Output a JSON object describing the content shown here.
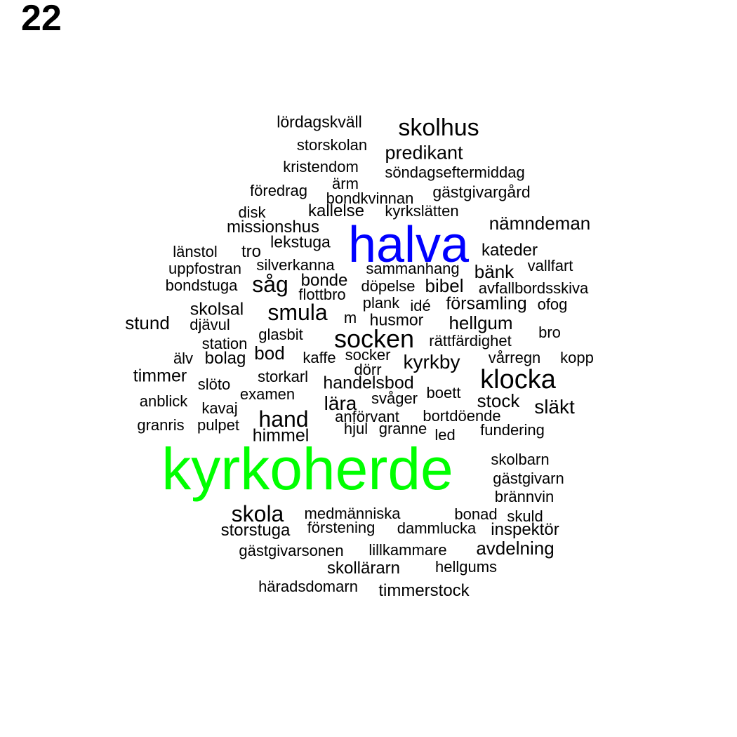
{
  "page_number": "22",
  "colors": {
    "default": "#000000",
    "highlight_blue": "#0000ff",
    "highlight_green": "#00ff00"
  },
  "words": [
    {
      "text": "kyrkoherde",
      "color": "#00ff00"
    },
    {
      "text": "halva",
      "color": "#0000ff"
    },
    {
      "text": "skolhus"
    },
    {
      "text": "klocka"
    },
    {
      "text": "socken"
    },
    {
      "text": "lördagskväll"
    },
    {
      "text": "storskolan"
    },
    {
      "text": "predikant"
    },
    {
      "text": "kristendom"
    },
    {
      "text": "söndagseftermiddag"
    },
    {
      "text": "ärm"
    },
    {
      "text": "föredrag"
    },
    {
      "text": "bondkvinnan"
    },
    {
      "text": "gästgivargård"
    },
    {
      "text": "disk"
    },
    {
      "text": "kallelse"
    },
    {
      "text": "kyrkslätten"
    },
    {
      "text": "nämndeman"
    },
    {
      "text": "missionshus"
    },
    {
      "text": "lekstuga"
    },
    {
      "text": "länstol"
    },
    {
      "text": "tro"
    },
    {
      "text": "kateder"
    },
    {
      "text": "uppfostran"
    },
    {
      "text": "silverkanna"
    },
    {
      "text": "sammanhang"
    },
    {
      "text": "bänk"
    },
    {
      "text": "vallfart"
    },
    {
      "text": "bondstuga"
    },
    {
      "text": "såg"
    },
    {
      "text": "bonde"
    },
    {
      "text": "döpelse"
    },
    {
      "text": "bibel"
    },
    {
      "text": "avfallbordsskiva"
    },
    {
      "text": "flottbro"
    },
    {
      "text": "plank"
    },
    {
      "text": "idé"
    },
    {
      "text": "församling"
    },
    {
      "text": "ofog"
    },
    {
      "text": "skolsal"
    },
    {
      "text": "smula"
    },
    {
      "text": "stund"
    },
    {
      "text": "djävul"
    },
    {
      "text": "m"
    },
    {
      "text": "husmor"
    },
    {
      "text": "hellgum"
    },
    {
      "text": "glasbit"
    },
    {
      "text": "bro"
    },
    {
      "text": "station"
    },
    {
      "text": "rättfärdighet"
    },
    {
      "text": "bod"
    },
    {
      "text": "älv"
    },
    {
      "text": "bolag"
    },
    {
      "text": "kaffe"
    },
    {
      "text": "socker"
    },
    {
      "text": "vårregn"
    },
    {
      "text": "kopp"
    },
    {
      "text": "dörr"
    },
    {
      "text": "kyrkby"
    },
    {
      "text": "timmer"
    },
    {
      "text": "storkarl"
    },
    {
      "text": "handelsbod"
    },
    {
      "text": "slöto"
    },
    {
      "text": "boett"
    },
    {
      "text": "examen"
    },
    {
      "text": "anblick"
    },
    {
      "text": "svåger"
    },
    {
      "text": "stock"
    },
    {
      "text": "kavaj"
    },
    {
      "text": "lära"
    },
    {
      "text": "släkt"
    },
    {
      "text": "hand"
    },
    {
      "text": "anförvant"
    },
    {
      "text": "bortdöende"
    },
    {
      "text": "granris"
    },
    {
      "text": "pulpet"
    },
    {
      "text": "hjul"
    },
    {
      "text": "granne"
    },
    {
      "text": "fundering"
    },
    {
      "text": "himmel"
    },
    {
      "text": "led"
    },
    {
      "text": "skolbarn"
    },
    {
      "text": "gästgivarn"
    },
    {
      "text": "brännvin"
    },
    {
      "text": "skola"
    },
    {
      "text": "medmänniska"
    },
    {
      "text": "bonad"
    },
    {
      "text": "skuld"
    },
    {
      "text": "storstuga"
    },
    {
      "text": "förstening"
    },
    {
      "text": "dammlucka"
    },
    {
      "text": "inspektör"
    },
    {
      "text": "gästgivarsonen"
    },
    {
      "text": "lillkammare"
    },
    {
      "text": "avdelning"
    },
    {
      "text": "skollärarn"
    },
    {
      "text": "hellgums"
    },
    {
      "text": "häradsdomarn"
    },
    {
      "text": "timmerstock"
    }
  ]
}
